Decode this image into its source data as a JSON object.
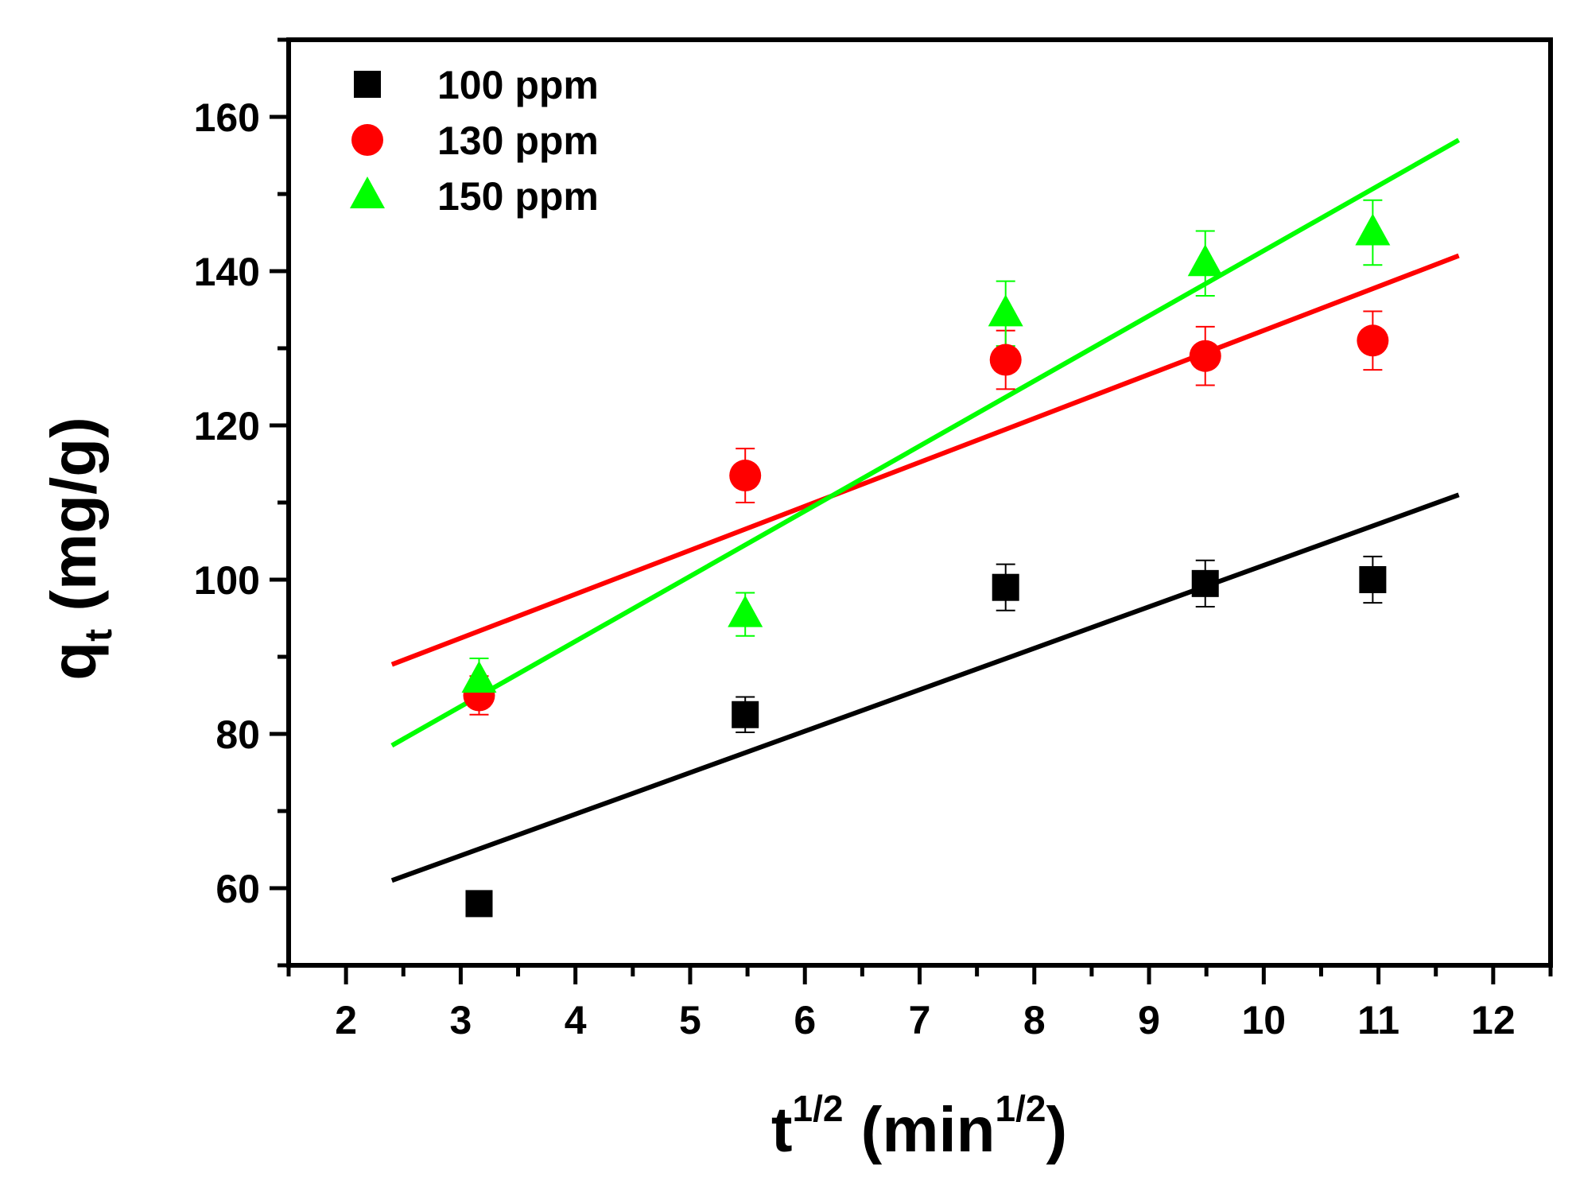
{
  "chart_data": {
    "type": "scatter",
    "xlabel": {
      "base": "t",
      "sup": "1/2",
      "unit_open": " (min",
      "unit_sup": "1/2",
      "unit_close": ")"
    },
    "ylabel": {
      "base": "q",
      "sub": "t",
      "unit": " (mg/g)"
    },
    "xlim": [
      1.5,
      12.5
    ],
    "ylim": [
      50,
      170
    ],
    "x_ticks": [
      "2",
      "3",
      "4",
      "5",
      "6",
      "7",
      "8",
      "9",
      "10",
      "11",
      "12"
    ],
    "x_tick_values": [
      2,
      3,
      4,
      5,
      6,
      7,
      8,
      9,
      10,
      11,
      12
    ],
    "y_ticks": [
      "60",
      "80",
      "100",
      "120",
      "140",
      "160"
    ],
    "y_tick_values": [
      60,
      80,
      100,
      120,
      140,
      160
    ],
    "legend_position": "top-left",
    "series": [
      {
        "name": "100 ppm",
        "marker": "square",
        "color": "#000000",
        "x": [
          3.16,
          5.48,
          7.75,
          9.49,
          10.95
        ],
        "y": [
          58,
          82.5,
          99,
          99.5,
          100
        ],
        "err": [
          0,
          2.3,
          3.0,
          3.0,
          3.0
        ],
        "fit": {
          "x": [
            2.4,
            11.7
          ],
          "y": [
            61,
            111
          ]
        }
      },
      {
        "name": "130 ppm",
        "marker": "circle",
        "color": "#ff0000",
        "x": [
          3.16,
          5.48,
          7.75,
          9.49,
          10.95
        ],
        "y": [
          85,
          113.5,
          128.5,
          129,
          131
        ],
        "err": [
          2.5,
          3.5,
          3.8,
          3.8,
          3.8
        ],
        "fit": {
          "x": [
            2.4,
            11.7
          ],
          "y": [
            89,
            142
          ]
        }
      },
      {
        "name": "150 ppm",
        "marker": "triangle",
        "color": "#00ff00",
        "x": [
          3.16,
          5.48,
          7.75,
          9.49,
          10.95
        ],
        "y": [
          87,
          95.5,
          134.5,
          141,
          145
        ],
        "err": [
          2.8,
          2.8,
          4.2,
          4.2,
          4.2
        ],
        "fit": {
          "x": [
            2.4,
            11.7
          ],
          "y": [
            78.5,
            157
          ]
        }
      }
    ]
  }
}
